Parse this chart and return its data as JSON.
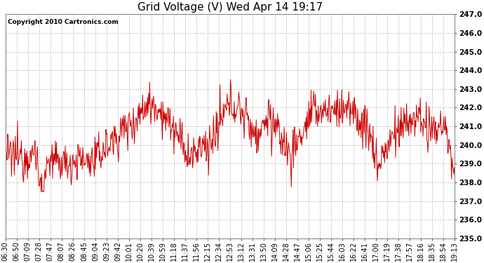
{
  "title": "Grid Voltage (V) Wed Apr 14 19:17",
  "copyright": "Copyright 2010 Cartronics.com",
  "ylim": [
    235.0,
    247.0
  ],
  "yticks": [
    235.0,
    236.0,
    237.0,
    238.0,
    239.0,
    240.0,
    241.0,
    242.0,
    243.0,
    244.0,
    245.0,
    246.0,
    247.0
  ],
  "line_color": "#cc0000",
  "background_color": "#ffffff",
  "plot_bg_color": "#ffffff",
  "grid_color": "#bbbbbb",
  "xtick_labels": [
    "06:30",
    "06:50",
    "07:09",
    "07:28",
    "07:47",
    "08:07",
    "08:26",
    "08:45",
    "09:04",
    "09:23",
    "09:42",
    "10:01",
    "10:20",
    "10:39",
    "10:59",
    "11:18",
    "11:37",
    "11:56",
    "12:15",
    "12:34",
    "12:53",
    "13:12",
    "13:31",
    "13:50",
    "14:09",
    "14:28",
    "14:47",
    "15:06",
    "15:25",
    "15:44",
    "16:03",
    "16:22",
    "16:41",
    "17:00",
    "17:19",
    "17:38",
    "17:57",
    "18:16",
    "18:35",
    "18:54",
    "19:13"
  ],
  "title_fontsize": 11,
  "tick_fontsize": 7,
  "copyright_fontsize": 6.5,
  "figsize": [
    6.9,
    3.75
  ],
  "dpi": 100
}
